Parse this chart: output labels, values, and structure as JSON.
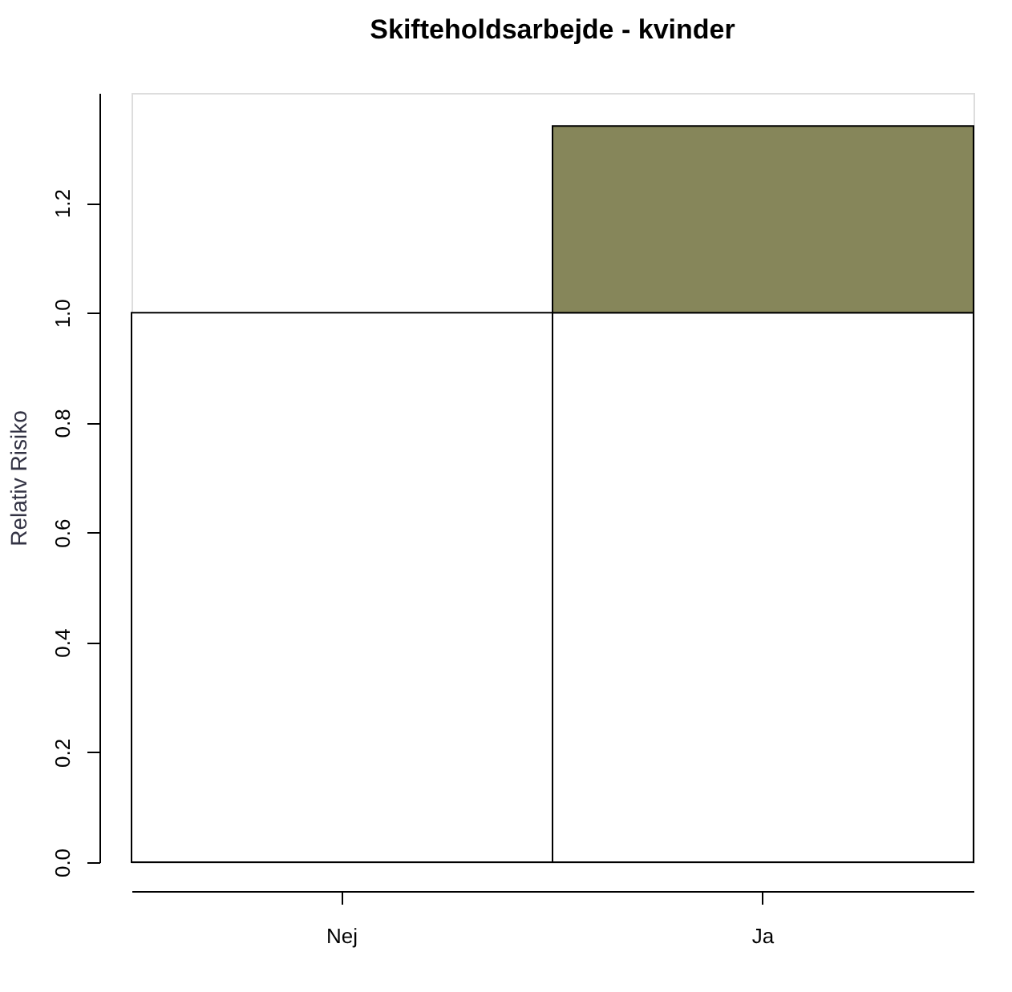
{
  "chart_data": {
    "type": "bar",
    "title": "Skifteholdsarbejde - kvinder",
    "ylabel": "Relativ Risiko",
    "categories": [
      "Nej",
      "Ja"
    ],
    "stacked": true,
    "series": [
      {
        "color": "#ffffff",
        "values": [
          1.0,
          1.0
        ]
      },
      {
        "color": "#86865a",
        "values": [
          null,
          0.34
        ]
      }
    ],
    "ylim": [
      0,
      1.4
    ],
    "yticks": [
      {
        "value": 0,
        "label": "0.0"
      },
      {
        "value": 0.2,
        "label": "0.2"
      },
      {
        "value": 0.4,
        "label": "0.4"
      },
      {
        "value": 0.6,
        "label": "0.6"
      },
      {
        "value": 0.8,
        "label": "0.8"
      },
      {
        "value": 1.0,
        "label": "1.0"
      },
      {
        "value": 1.2,
        "label": "1.2"
      }
    ],
    "grid": false,
    "legend": false
  }
}
